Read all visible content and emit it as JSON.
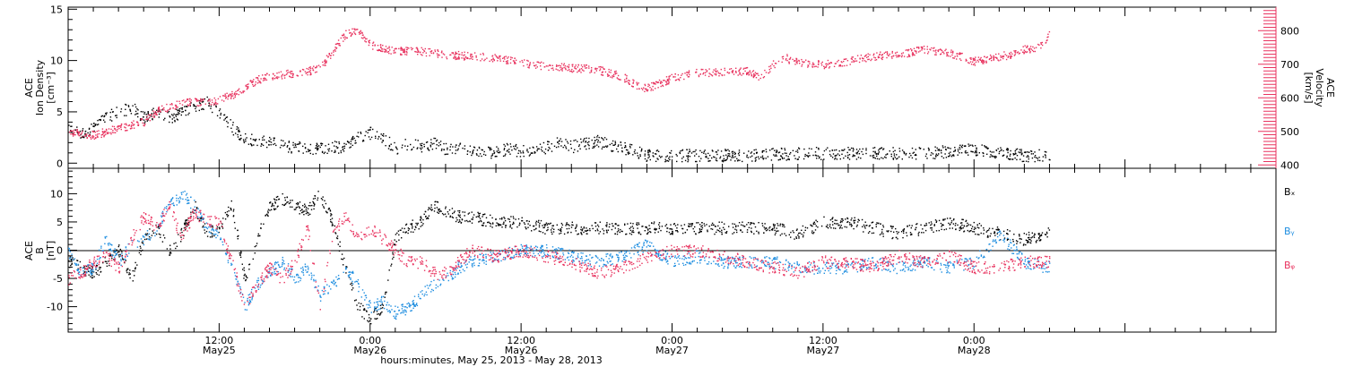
{
  "colors": {
    "black": "#000000",
    "pink": "#e8335f",
    "blue": "#1f8ee0",
    "zero_line": "#000000"
  },
  "x_axis": {
    "label": "hours:minutes, May 25, 2013 - May 28, 2013",
    "range_hours": [
      0,
      96
    ],
    "ticks": [
      {
        "hours": 12,
        "time": "12:00",
        "date": "May25"
      },
      {
        "hours": 24,
        "time": "0:00",
        "date": "May26"
      },
      {
        "hours": 36,
        "time": "12:00",
        "date": "May26"
      },
      {
        "hours": 48,
        "time": "0:00",
        "date": "May27"
      },
      {
        "hours": 60,
        "time": "12:00",
        "date": "May27"
      },
      {
        "hours": 72,
        "time": "0:00",
        "date": "May28"
      }
    ]
  },
  "chart_data": [
    {
      "type": "scatter",
      "panel": "top",
      "ylabel_left": [
        "ACE",
        "Ion Density",
        "[cm⁻³]"
      ],
      "ylabel_right": [
        "ACE",
        "Velocity",
        "[km/s]"
      ],
      "y_left_range": [
        -0.5,
        15.2
      ],
      "y_left_ticks": [
        0,
        5,
        10,
        15
      ],
      "y_right_range": [
        390,
        870
      ],
      "y_right_ticks": [
        400,
        500,
        600,
        700,
        800
      ],
      "series": [
        {
          "color": "#000000",
          "axis": "left",
          "x": [
            0,
            1,
            2,
            3,
            4,
            5,
            6,
            7,
            8,
            9,
            10,
            11,
            12,
            13,
            14,
            15,
            16,
            17,
            18,
            19,
            20,
            21,
            22,
            23,
            24,
            25,
            26,
            27,
            28,
            29,
            30,
            31,
            32,
            33,
            34,
            35,
            36,
            37,
            38,
            39,
            40,
            41,
            42,
            43,
            44,
            45,
            46,
            47,
            48,
            50,
            52,
            54,
            56,
            58,
            60,
            62,
            64,
            66,
            68,
            70,
            72,
            74,
            76,
            78
          ],
          "y": [
            3.8,
            3.0,
            3.5,
            4.5,
            5.0,
            5.5,
            4.5,
            5.0,
            4.5,
            5.0,
            5.5,
            6.0,
            5.0,
            3.5,
            2.5,
            2.2,
            2.0,
            1.8,
            1.6,
            1.5,
            1.4,
            1.6,
            1.5,
            2.5,
            3.0,
            2.5,
            1.5,
            2.0,
            1.6,
            2.0,
            1.4,
            1.5,
            1.2,
            1.0,
            1.2,
            1.4,
            1.2,
            1.4,
            1.6,
            2.0,
            1.6,
            2.0,
            2.2,
            1.8,
            1.6,
            1.2,
            0.8,
            0.8,
            0.8,
            0.8,
            0.8,
            0.8,
            0.9,
            1.0,
            1.0,
            1.0,
            1.0,
            1.0,
            1.0,
            1.2,
            1.4,
            1.0,
            0.8,
            0.8
          ]
        },
        {
          "color": "#e8335f",
          "axis": "right",
          "x": [
            0,
            2,
            4,
            5,
            6,
            7,
            8,
            9,
            10,
            11,
            12,
            13,
            14,
            15,
            16,
            17,
            18,
            19,
            20,
            21,
            22,
            23,
            24,
            26,
            28,
            30,
            32,
            34,
            36,
            38,
            40,
            42,
            44,
            45,
            46,
            48,
            49,
            50,
            52,
            54,
            55,
            56,
            57,
            58,
            60,
            62,
            64,
            66,
            68,
            70,
            72,
            74,
            75,
            76,
            77,
            78
          ],
          "y": [
            500,
            490,
            510,
            520,
            530,
            560,
            575,
            585,
            590,
            585,
            595,
            610,
            630,
            655,
            665,
            670,
            675,
            680,
            690,
            740,
            790,
            800,
            760,
            740,
            740,
            730,
            725,
            720,
            705,
            695,
            690,
            685,
            665,
            640,
            630,
            660,
            670,
            675,
            680,
            680,
            660,
            700,
            720,
            705,
            700,
            710,
            725,
            730,
            745,
            735,
            710,
            725,
            730,
            745,
            750,
            790
          ]
        }
      ]
    },
    {
      "type": "scatter",
      "panel": "bottom",
      "ylabel_left": [
        "ACE",
        "B",
        "[nT]"
      ],
      "y_range": [
        -14.5,
        14.5
      ],
      "y_ticks": [
        -10,
        -5,
        0,
        5,
        10
      ],
      "zero_line": true,
      "legend_position": "right",
      "series": [
        {
          "name": "Bₓ",
          "color": "#000000",
          "x": [
            0,
            1,
            2,
            3,
            4,
            5,
            6,
            7,
            8,
            9,
            10,
            11,
            12,
            13,
            14,
            15,
            16,
            17,
            18,
            19,
            20,
            21,
            22,
            23,
            24,
            25,
            26,
            27,
            28,
            29,
            30,
            31,
            32,
            34,
            36,
            38,
            40,
            42,
            44,
            46,
            48,
            50,
            52,
            54,
            56,
            58,
            60,
            62,
            64,
            66,
            68,
            70,
            72,
            74,
            76,
            78
          ],
          "y": [
            -2,
            -3,
            -4,
            -2,
            0,
            -5,
            2,
            4,
            0,
            3,
            8,
            3,
            4,
            8,
            -5,
            2,
            8,
            9,
            8,
            7,
            10,
            5,
            -3,
            -10,
            -12,
            -10,
            2,
            4,
            5,
            8,
            7,
            6,
            6,
            5,
            5,
            4,
            4,
            4,
            4,
            4,
            4,
            4,
            4,
            4,
            4,
            3,
            5,
            5,
            4,
            3,
            4,
            5,
            4,
            3,
            2,
            3
          ]
        },
        {
          "name": "Bᵧ",
          "color": "#1f8ee0",
          "x": [
            0,
            1,
            2,
            3,
            4,
            5,
            6,
            7,
            8,
            9,
            10,
            11,
            12,
            13,
            14,
            15,
            16,
            17,
            18,
            19,
            20,
            21,
            22,
            23,
            24,
            25,
            26,
            27,
            28,
            29,
            30,
            31,
            32,
            34,
            36,
            38,
            40,
            42,
            44,
            46,
            48,
            50,
            52,
            54,
            56,
            58,
            60,
            62,
            64,
            66,
            68,
            70,
            72,
            74,
            76,
            78
          ],
          "y": [
            0,
            -4,
            -3,
            2,
            -2,
            1,
            2,
            4,
            8,
            10,
            8,
            4,
            2,
            -3,
            -10,
            -6,
            -4,
            -2,
            -5,
            -3,
            -8,
            -6,
            -3,
            -6,
            -10,
            -9,
            -11,
            -10,
            -8,
            -6,
            -5,
            -3,
            -2,
            -1,
            0,
            0,
            -1,
            -2,
            -1,
            1,
            -2,
            -1,
            -2,
            -2,
            -2,
            -3,
            -3,
            -3,
            -2,
            -3,
            -2,
            -3,
            -2,
            3,
            -2,
            -3
          ]
        },
        {
          "name": "Bᵩ",
          "color": "#e8335f",
          "x": [
            0,
            1,
            2,
            3,
            4,
            5,
            6,
            7,
            8,
            9,
            10,
            11,
            12,
            13,
            14,
            15,
            16,
            17,
            18,
            19,
            20,
            21,
            22,
            23,
            24,
            25,
            26,
            27,
            28,
            29,
            30,
            31,
            32,
            34,
            36,
            38,
            40,
            42,
            44,
            46,
            48,
            50,
            52,
            54,
            56,
            58,
            60,
            62,
            64,
            66,
            68,
            70,
            72,
            74,
            76,
            78
          ],
          "y": [
            -5,
            -4,
            -2,
            -1,
            -3,
            2,
            6,
            4,
            8,
            2,
            7,
            5,
            5,
            -2,
            -10,
            -6,
            -3,
            -5,
            -2,
            4,
            -10,
            3,
            6,
            2,
            4,
            2,
            0,
            -2,
            -2,
            -4,
            -4,
            -2,
            0,
            -1,
            0,
            -1,
            -2,
            -4,
            -3,
            -1,
            0,
            0,
            -1,
            -2,
            -3,
            -4,
            -2,
            -2,
            -3,
            -1,
            -2,
            -1,
            -3,
            -3,
            -2,
            -2
          ]
        }
      ]
    }
  ]
}
